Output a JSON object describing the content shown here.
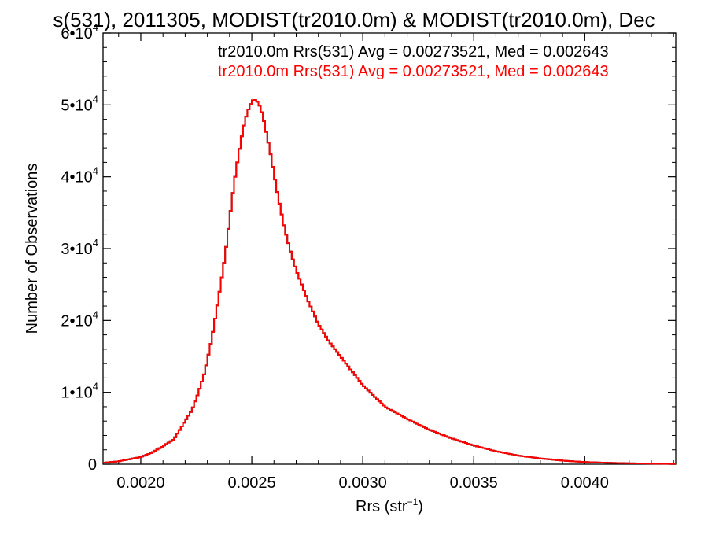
{
  "chart_data": {
    "type": "histogram",
    "title": "s(531), 2011305, MODIST(tr2010.0m) & MODIST(tr2010.0m), Dec",
    "xlabel": "Rrs (str",
    "xlabel_sup": "−1",
    "xlabel_suffix": ")",
    "ylabel": "Number of Observations",
    "xlim": [
      0.00183,
      0.00441
    ],
    "ylim": [
      0,
      60000
    ],
    "x_ticks": [
      {
        "value": 0.002,
        "label": "0.0020"
      },
      {
        "value": 0.0025,
        "label": "0.0025"
      },
      {
        "value": 0.003,
        "label": "0.0030"
      },
      {
        "value": 0.0035,
        "label": "0.0035"
      },
      {
        "value": 0.004,
        "label": "0.0040"
      }
    ],
    "y_ticks": [
      {
        "value": 0,
        "label": "0",
        "sup": ""
      },
      {
        "value": 10000,
        "label": "1•10",
        "sup": "4"
      },
      {
        "value": 20000,
        "label": "2•10",
        "sup": "4"
      },
      {
        "value": 30000,
        "label": "3•10",
        "sup": "4"
      },
      {
        "value": 40000,
        "label": "4•10",
        "sup": "4"
      },
      {
        "value": 50000,
        "label": "5•10",
        "sup": "4"
      },
      {
        "value": 60000,
        "label": "6•10",
        "sup": "4"
      }
    ],
    "grid": false,
    "legend_placement": "top-right",
    "series": [
      {
        "name": "tr2010.0m Rrs(531) Avg = 0.00273521, Med = 0.002643",
        "color": "#000000",
        "x": [
          0.00183,
          0.0019,
          0.00195,
          0.002,
          0.00205,
          0.0021,
          0.00215,
          0.0022,
          0.00223,
          0.00226,
          0.00229,
          0.00232,
          0.00235,
          0.00238,
          0.0024,
          0.00242,
          0.00244,
          0.00246,
          0.00248,
          0.0025,
          0.00251,
          0.00252,
          0.00253,
          0.00254,
          0.00255,
          0.00256,
          0.00258,
          0.0026,
          0.00262,
          0.00265,
          0.00268,
          0.0027,
          0.00275,
          0.0028,
          0.00285,
          0.0029,
          0.00295,
          0.003,
          0.0031,
          0.0032,
          0.0033,
          0.0034,
          0.0035,
          0.0036,
          0.0037,
          0.0038,
          0.0039,
          0.004,
          0.0041,
          0.0042,
          0.0043,
          0.00441
        ],
        "y": [
          200,
          400,
          700,
          1000,
          1600,
          2500,
          3500,
          6000,
          7500,
          10000,
          13000,
          17500,
          23000,
          29000,
          34000,
          39000,
          43000,
          46500,
          49000,
          50500,
          50800,
          50600,
          50300,
          49500,
          48500,
          47000,
          44000,
          40500,
          37000,
          32500,
          29000,
          27000,
          23000,
          19500,
          17000,
          15000,
          13000,
          11000,
          8000,
          6300,
          4800,
          3600,
          2600,
          1800,
          1200,
          800,
          500,
          300,
          200,
          130,
          80,
          40
        ]
      },
      {
        "name": "tr2010.0m Rrs(531) Avg = 0.00273521, Med = 0.002643",
        "color": "#ff0000",
        "x": [
          0.00183,
          0.0019,
          0.00195,
          0.002,
          0.00205,
          0.0021,
          0.00215,
          0.0022,
          0.00223,
          0.00226,
          0.00229,
          0.00232,
          0.00235,
          0.00238,
          0.0024,
          0.00242,
          0.00244,
          0.00246,
          0.00248,
          0.0025,
          0.00251,
          0.00252,
          0.00253,
          0.00254,
          0.00255,
          0.00256,
          0.00258,
          0.0026,
          0.00262,
          0.00265,
          0.00268,
          0.0027,
          0.00275,
          0.0028,
          0.00285,
          0.0029,
          0.00295,
          0.003,
          0.0031,
          0.0032,
          0.0033,
          0.0034,
          0.0035,
          0.0036,
          0.0037,
          0.0038,
          0.0039,
          0.004,
          0.0041,
          0.0042,
          0.0043,
          0.00441
        ],
        "y": [
          200,
          400,
          700,
          1000,
          1600,
          2500,
          3500,
          6000,
          7500,
          10000,
          13000,
          17500,
          23000,
          29000,
          34000,
          39000,
          43000,
          46500,
          49000,
          50500,
          50800,
          50600,
          50300,
          49500,
          48500,
          47000,
          44000,
          40500,
          37000,
          32500,
          29000,
          27000,
          23000,
          19500,
          17000,
          15000,
          13000,
          11000,
          8000,
          6300,
          4800,
          3600,
          2600,
          1800,
          1200,
          800,
          500,
          300,
          200,
          130,
          80,
          40
        ]
      }
    ]
  }
}
